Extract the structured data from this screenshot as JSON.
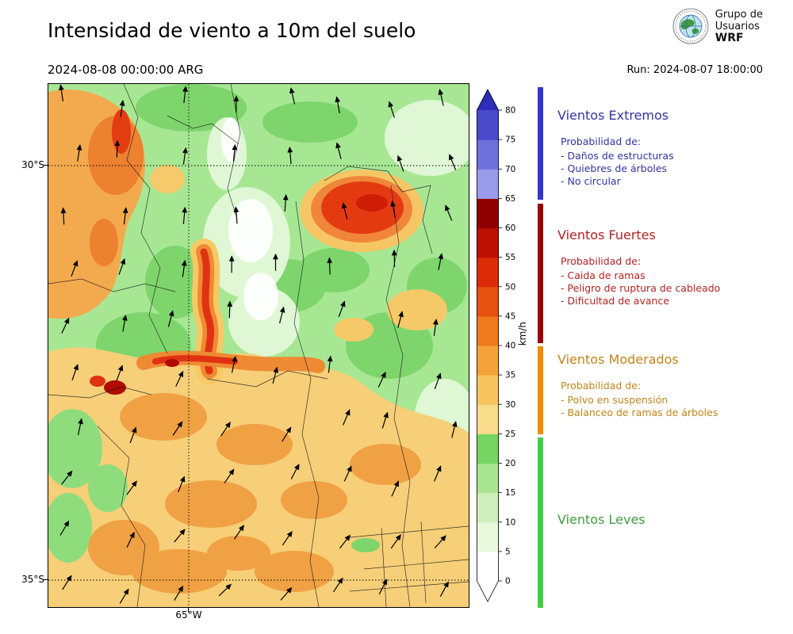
{
  "header": {
    "title": "Intensidad de viento a 10m del suelo",
    "valid_datetime": "2024-08-08 00:00:00 ARG",
    "run_label": "Run: 2024-08-07 18:00:00",
    "logo": {
      "line1": "Grupo de",
      "line2": "Usuarios",
      "line3": "WRF"
    }
  },
  "map": {
    "lat_labels": [
      "30°S",
      "35°S"
    ],
    "lon_label": "65°W"
  },
  "colorbar": {
    "unit": "km/h",
    "ticks": [
      0,
      5,
      10,
      15,
      20,
      25,
      30,
      35,
      40,
      45,
      50,
      55,
      60,
      65,
      70,
      75,
      80
    ],
    "segment_colors_bottom_to_top": [
      "#ffffff",
      "#e8f8dd",
      "#cfefbc",
      "#a9e493",
      "#76d463",
      "#f8dc8c",
      "#f7c55e",
      "#f4a33a",
      "#ee7c1e",
      "#e65110",
      "#dd2b08",
      "#bb1003",
      "#8e0000",
      "#9b9bec",
      "#7070dd",
      "#4a4acd"
    ],
    "arrow_top_color": "#2d2db9",
    "arrow_bottom_color": "#ffffff"
  },
  "legend": {
    "sections": [
      {
        "title": "Vientos Extremos",
        "text_color": "#3333a0",
        "bar_color": "#3535cc",
        "items_header": "Probabilidad de:",
        "items": [
          "- Daños de estructuras",
          "- Quiebres de árboles",
          "- No circular"
        ]
      },
      {
        "title": "Vientos Fuertes",
        "text_color": "#b22222",
        "bar_color": "#990000",
        "items_header": "Probabilidad de:",
        "items": [
          "- Caida de ramas",
          "- Peligro de ruptura de cableado",
          "- Dificultad de avance"
        ]
      },
      {
        "title": "Vientos Moderados",
        "text_color": "#c1841c",
        "bar_color": "#f08c00",
        "items_header": "Probabilidad de:",
        "items": [
          "- Polvo en suspensión",
          "- Balanceo de ramas de árboles"
        ]
      },
      {
        "title": "Vientos Leves",
        "text_color": "#3f9b3f",
        "bar_color": "#44cc44",
        "items_header": "",
        "items": []
      }
    ]
  }
}
